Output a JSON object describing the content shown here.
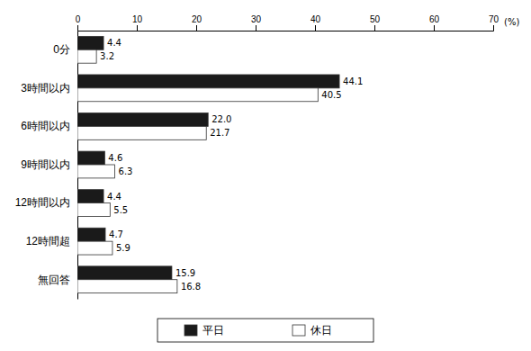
{
  "chart_data": {
    "type": "bar",
    "orientation": "horizontal",
    "categories": [
      "0分",
      "3時間以内",
      "6時間以内",
      "9時間以内",
      "12時間以内",
      "12時間超",
      "無回答"
    ],
    "series": [
      {
        "name": "平日",
        "color": "#1a1a1a",
        "values": [
          4.4,
          44.1,
          22.0,
          4.6,
          4.4,
          4.7,
          15.9
        ],
        "value_labels": [
          "4.4",
          "44.1",
          "22.0",
          "4.6",
          "4.4",
          "4.7",
          "15.9"
        ]
      },
      {
        "name": "休日",
        "color": "#ffffff",
        "values": [
          3.2,
          40.5,
          21.7,
          6.3,
          5.5,
          5.9,
          16.8
        ],
        "value_labels": [
          "3.2",
          "40.5",
          "21.7",
          "6.3",
          "5.5",
          "5.9",
          "16.8"
        ]
      }
    ],
    "x_label": "(%)",
    "xlim": [
      0,
      70
    ],
    "xticks": [
      0,
      10,
      20,
      30,
      40,
      50,
      60,
      70
    ],
    "data_labels": true,
    "legend": "bottom"
  }
}
